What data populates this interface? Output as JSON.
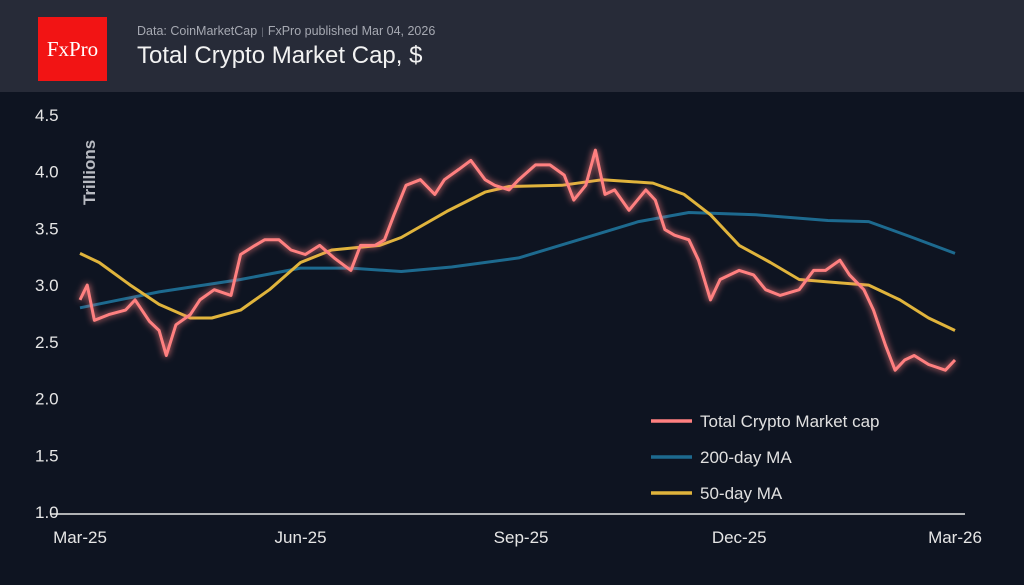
{
  "header": {
    "logo_text": "FxPro",
    "source": "Data: CoinMarketCap",
    "published": "FxPro published Mar 04, 2026",
    "title": "Total Crypto Market Cap, $"
  },
  "chart_data": {
    "type": "line",
    "title": "Total Crypto Market Cap, $",
    "ylabel": "Trillions",
    "ylim": [
      1.0,
      4.5
    ],
    "yticks": [
      "1.0",
      "1.5",
      "2.0",
      "2.5",
      "3.0",
      "3.5",
      "4.0",
      "4.5"
    ],
    "xlim": [
      "2025-03-01",
      "2026-03-01"
    ],
    "xticks": [
      {
        "date": "2025-03-01",
        "label": "Mar-25"
      },
      {
        "date": "2025-06-01",
        "label": "Jun-25"
      },
      {
        "date": "2025-09-01",
        "label": "Sep-25"
      },
      {
        "date": "2025-12-01",
        "label": "Dec-25"
      },
      {
        "date": "2026-03-01",
        "label": "Mar-26"
      }
    ],
    "grid": false,
    "legend_position": "bottom-right",
    "series": [
      {
        "name": "Total Crypto Market cap",
        "color": "#ff8080",
        "glow": true,
        "x": [
          "2025-03-01",
          "2025-03-04",
          "2025-03-07",
          "2025-03-13",
          "2025-03-20",
          "2025-03-24",
          "2025-03-30",
          "2025-04-03",
          "2025-04-06",
          "2025-04-10",
          "2025-04-16",
          "2025-04-20",
          "2025-04-26",
          "2025-05-03",
          "2025-05-07",
          "2025-05-13",
          "2025-05-17",
          "2025-05-23",
          "2025-05-28",
          "2025-06-03",
          "2025-06-09",
          "2025-06-15",
          "2025-06-22",
          "2025-06-26",
          "2025-07-02",
          "2025-07-06",
          "2025-07-10",
          "2025-07-15",
          "2025-07-21",
          "2025-07-27",
          "2025-07-31",
          "2025-08-06",
          "2025-08-11",
          "2025-08-17",
          "2025-08-21",
          "2025-08-27",
          "2025-08-31",
          "2025-09-07",
          "2025-09-13",
          "2025-09-19",
          "2025-09-23",
          "2025-09-28",
          "2025-10-02",
          "2025-10-06",
          "2025-10-10",
          "2025-10-16",
          "2025-10-23",
          "2025-10-27",
          "2025-10-31",
          "2025-11-04",
          "2025-11-10",
          "2025-11-14",
          "2025-11-19",
          "2025-11-23",
          "2025-12-01",
          "2025-12-07",
          "2025-12-12",
          "2025-12-18",
          "2025-12-26",
          "2026-01-01",
          "2026-01-06",
          "2026-01-12",
          "2026-01-16",
          "2026-01-22",
          "2026-01-26",
          "2026-01-31",
          "2026-02-04",
          "2026-02-08",
          "2026-02-12",
          "2026-02-18",
          "2026-02-25",
          "2026-03-01"
        ],
        "y": [
          2.87,
          3.0,
          2.69,
          2.74,
          2.78,
          2.87,
          2.68,
          2.6,
          2.38,
          2.65,
          2.74,
          2.87,
          2.96,
          2.91,
          3.27,
          3.35,
          3.4,
          3.4,
          3.31,
          3.27,
          3.35,
          3.24,
          3.13,
          3.35,
          3.35,
          3.4,
          3.62,
          3.88,
          3.93,
          3.8,
          3.93,
          4.02,
          4.1,
          3.93,
          3.88,
          3.84,
          3.93,
          4.06,
          4.06,
          3.97,
          3.75,
          3.88,
          4.19,
          3.8,
          3.84,
          3.66,
          3.84,
          3.75,
          3.49,
          3.44,
          3.4,
          3.22,
          2.87,
          3.05,
          3.13,
          3.09,
          2.96,
          2.91,
          2.96,
          3.13,
          3.13,
          3.22,
          3.09,
          2.96,
          2.78,
          2.47,
          2.25,
          2.34,
          2.38,
          2.3,
          2.25,
          2.34
        ]
      },
      {
        "name": "200-day MA",
        "color": "#1d6a8f",
        "x": [
          "2025-03-01",
          "2025-04-03",
          "2025-05-07",
          "2025-06-01",
          "2025-06-22",
          "2025-07-13",
          "2025-08-03",
          "2025-08-31",
          "2025-09-25",
          "2025-10-20",
          "2025-11-10",
          "2025-12-08",
          "2026-01-07",
          "2026-01-24",
          "2026-02-10",
          "2026-03-01"
        ],
        "y": [
          2.8,
          2.94,
          3.05,
          3.15,
          3.15,
          3.12,
          3.16,
          3.24,
          3.4,
          3.56,
          3.64,
          3.62,
          3.57,
          3.56,
          3.43,
          3.28
        ]
      },
      {
        "name": "50-day MA",
        "color": "#e0b43c",
        "x": [
          "2025-03-01",
          "2025-03-09",
          "2025-03-22",
          "2025-04-03",
          "2025-04-16",
          "2025-04-25",
          "2025-05-07",
          "2025-05-19",
          "2025-06-01",
          "2025-06-14",
          "2025-07-04",
          "2025-07-13",
          "2025-08-01",
          "2025-08-17",
          "2025-08-27",
          "2025-09-18",
          "2025-10-05",
          "2025-10-26",
          "2025-11-08",
          "2025-11-19",
          "2025-12-01",
          "2025-12-14",
          "2025-12-26",
          "2026-01-12",
          "2026-01-24",
          "2026-02-06",
          "2026-02-18",
          "2026-03-01"
        ],
        "y": [
          3.28,
          3.2,
          3.0,
          2.83,
          2.71,
          2.71,
          2.78,
          2.96,
          3.2,
          3.31,
          3.35,
          3.42,
          3.65,
          3.82,
          3.87,
          3.88,
          3.93,
          3.9,
          3.8,
          3.62,
          3.35,
          3.2,
          3.05,
          3.02,
          3.0,
          2.87,
          2.71,
          2.6
        ]
      }
    ]
  }
}
